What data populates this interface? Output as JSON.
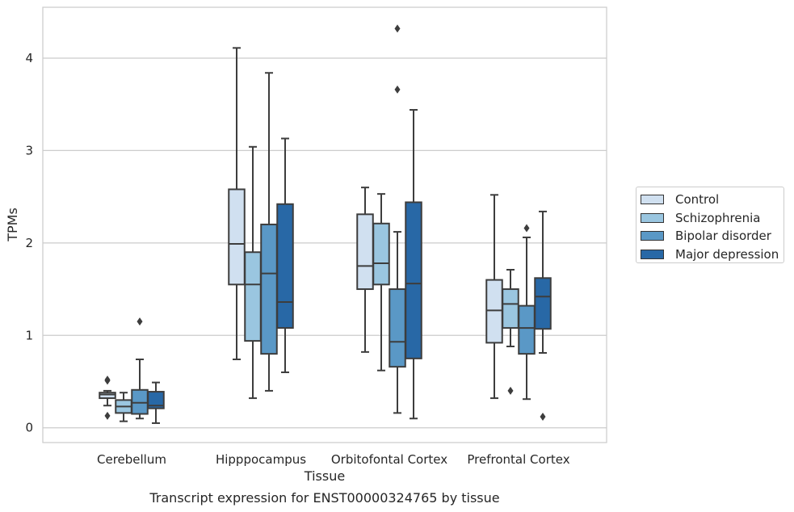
{
  "chart_data": {
    "type": "boxplot",
    "caption": "Transcript expression for ENST00000324765 by tissue",
    "xlabel": "Tissue",
    "ylabel": "TPMs",
    "ylim": [
      -0.16,
      4.55
    ],
    "yticks": [
      0,
      1,
      2,
      3,
      4
    ],
    "grid": "horizontal",
    "legend_position": "right",
    "categories": [
      "Cerebellum",
      "Hipppocampus",
      "Orbitofontal Cortex",
      "Prefrontal Cortex"
    ],
    "series": [
      {
        "name": "Control",
        "color": "#d0e0f0",
        "boxes": [
          {
            "min": 0.24,
            "q1": 0.32,
            "median": 0.36,
            "q3": 0.38,
            "max": 0.4,
            "outliers": [
              0.52,
              0.51,
              0.13
            ]
          },
          {
            "min": 0.74,
            "q1": 1.55,
            "median": 1.99,
            "q3": 2.58,
            "max": 4.11,
            "outliers": []
          },
          {
            "min": 0.82,
            "q1": 1.5,
            "median": 1.75,
            "q3": 2.31,
            "max": 2.6,
            "outliers": []
          },
          {
            "min": 0.32,
            "q1": 0.92,
            "median": 1.27,
            "q3": 1.6,
            "max": 2.52,
            "outliers": []
          }
        ]
      },
      {
        "name": "Schizophrenia",
        "color": "#9ac6e0",
        "boxes": [
          {
            "min": 0.07,
            "q1": 0.16,
            "median": 0.23,
            "q3": 0.3,
            "max": 0.38,
            "outliers": []
          },
          {
            "min": 0.32,
            "q1": 0.94,
            "median": 1.55,
            "q3": 1.9,
            "max": 3.04,
            "outliers": []
          },
          {
            "min": 0.62,
            "q1": 1.55,
            "median": 1.78,
            "q3": 2.21,
            "max": 2.53,
            "outliers": []
          },
          {
            "min": 0.88,
            "q1": 1.08,
            "median": 1.34,
            "q3": 1.5,
            "max": 1.71,
            "outliers": [
              0.4
            ]
          }
        ]
      },
      {
        "name": "Bipolar disorder",
        "color": "#5a98c6",
        "boxes": [
          {
            "min": 0.1,
            "q1": 0.15,
            "median": 0.27,
            "q3": 0.41,
            "max": 0.74,
            "outliers": [
              1.15
            ]
          },
          {
            "min": 0.4,
            "q1": 0.8,
            "median": 1.67,
            "q3": 2.2,
            "max": 3.84,
            "outliers": []
          },
          {
            "min": 0.16,
            "q1": 0.66,
            "median": 0.93,
            "q3": 1.5,
            "max": 2.12,
            "outliers": [
              3.66,
              4.32
            ]
          },
          {
            "min": 0.31,
            "q1": 0.8,
            "median": 1.08,
            "q3": 1.32,
            "max": 2.06,
            "outliers": [
              2.16
            ]
          }
        ]
      },
      {
        "name": "Major depression",
        "color": "#2868a6",
        "boxes": [
          {
            "min": 0.05,
            "q1": 0.21,
            "median": 0.24,
            "q3": 0.39,
            "max": 0.49,
            "outliers": []
          },
          {
            "min": 0.6,
            "q1": 1.08,
            "median": 1.36,
            "q3": 2.42,
            "max": 3.13,
            "outliers": []
          },
          {
            "min": 0.1,
            "q1": 0.75,
            "median": 1.56,
            "q3": 2.44,
            "max": 3.44,
            "outliers": []
          },
          {
            "min": 0.81,
            "q1": 1.07,
            "median": 1.42,
            "q3": 1.62,
            "max": 2.34,
            "outliers": [
              0.12
            ]
          }
        ]
      }
    ]
  }
}
